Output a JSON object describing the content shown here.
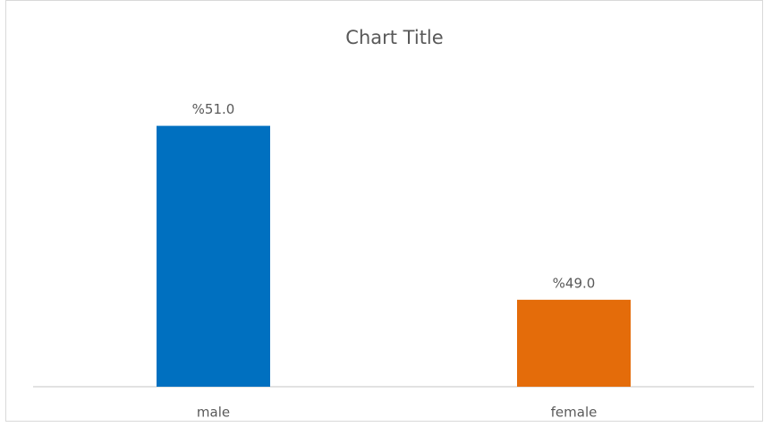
{
  "chart_data": {
    "type": "bar",
    "title": "Chart Title",
    "categories": [
      "male",
      "female"
    ],
    "values": [
      51.0,
      49.0
    ],
    "value_labels": [
      "%51.0",
      "%49.0"
    ],
    "colors": [
      "#0070c0",
      "#e46c0a"
    ],
    "ylim": [
      48,
      51.5
    ]
  }
}
